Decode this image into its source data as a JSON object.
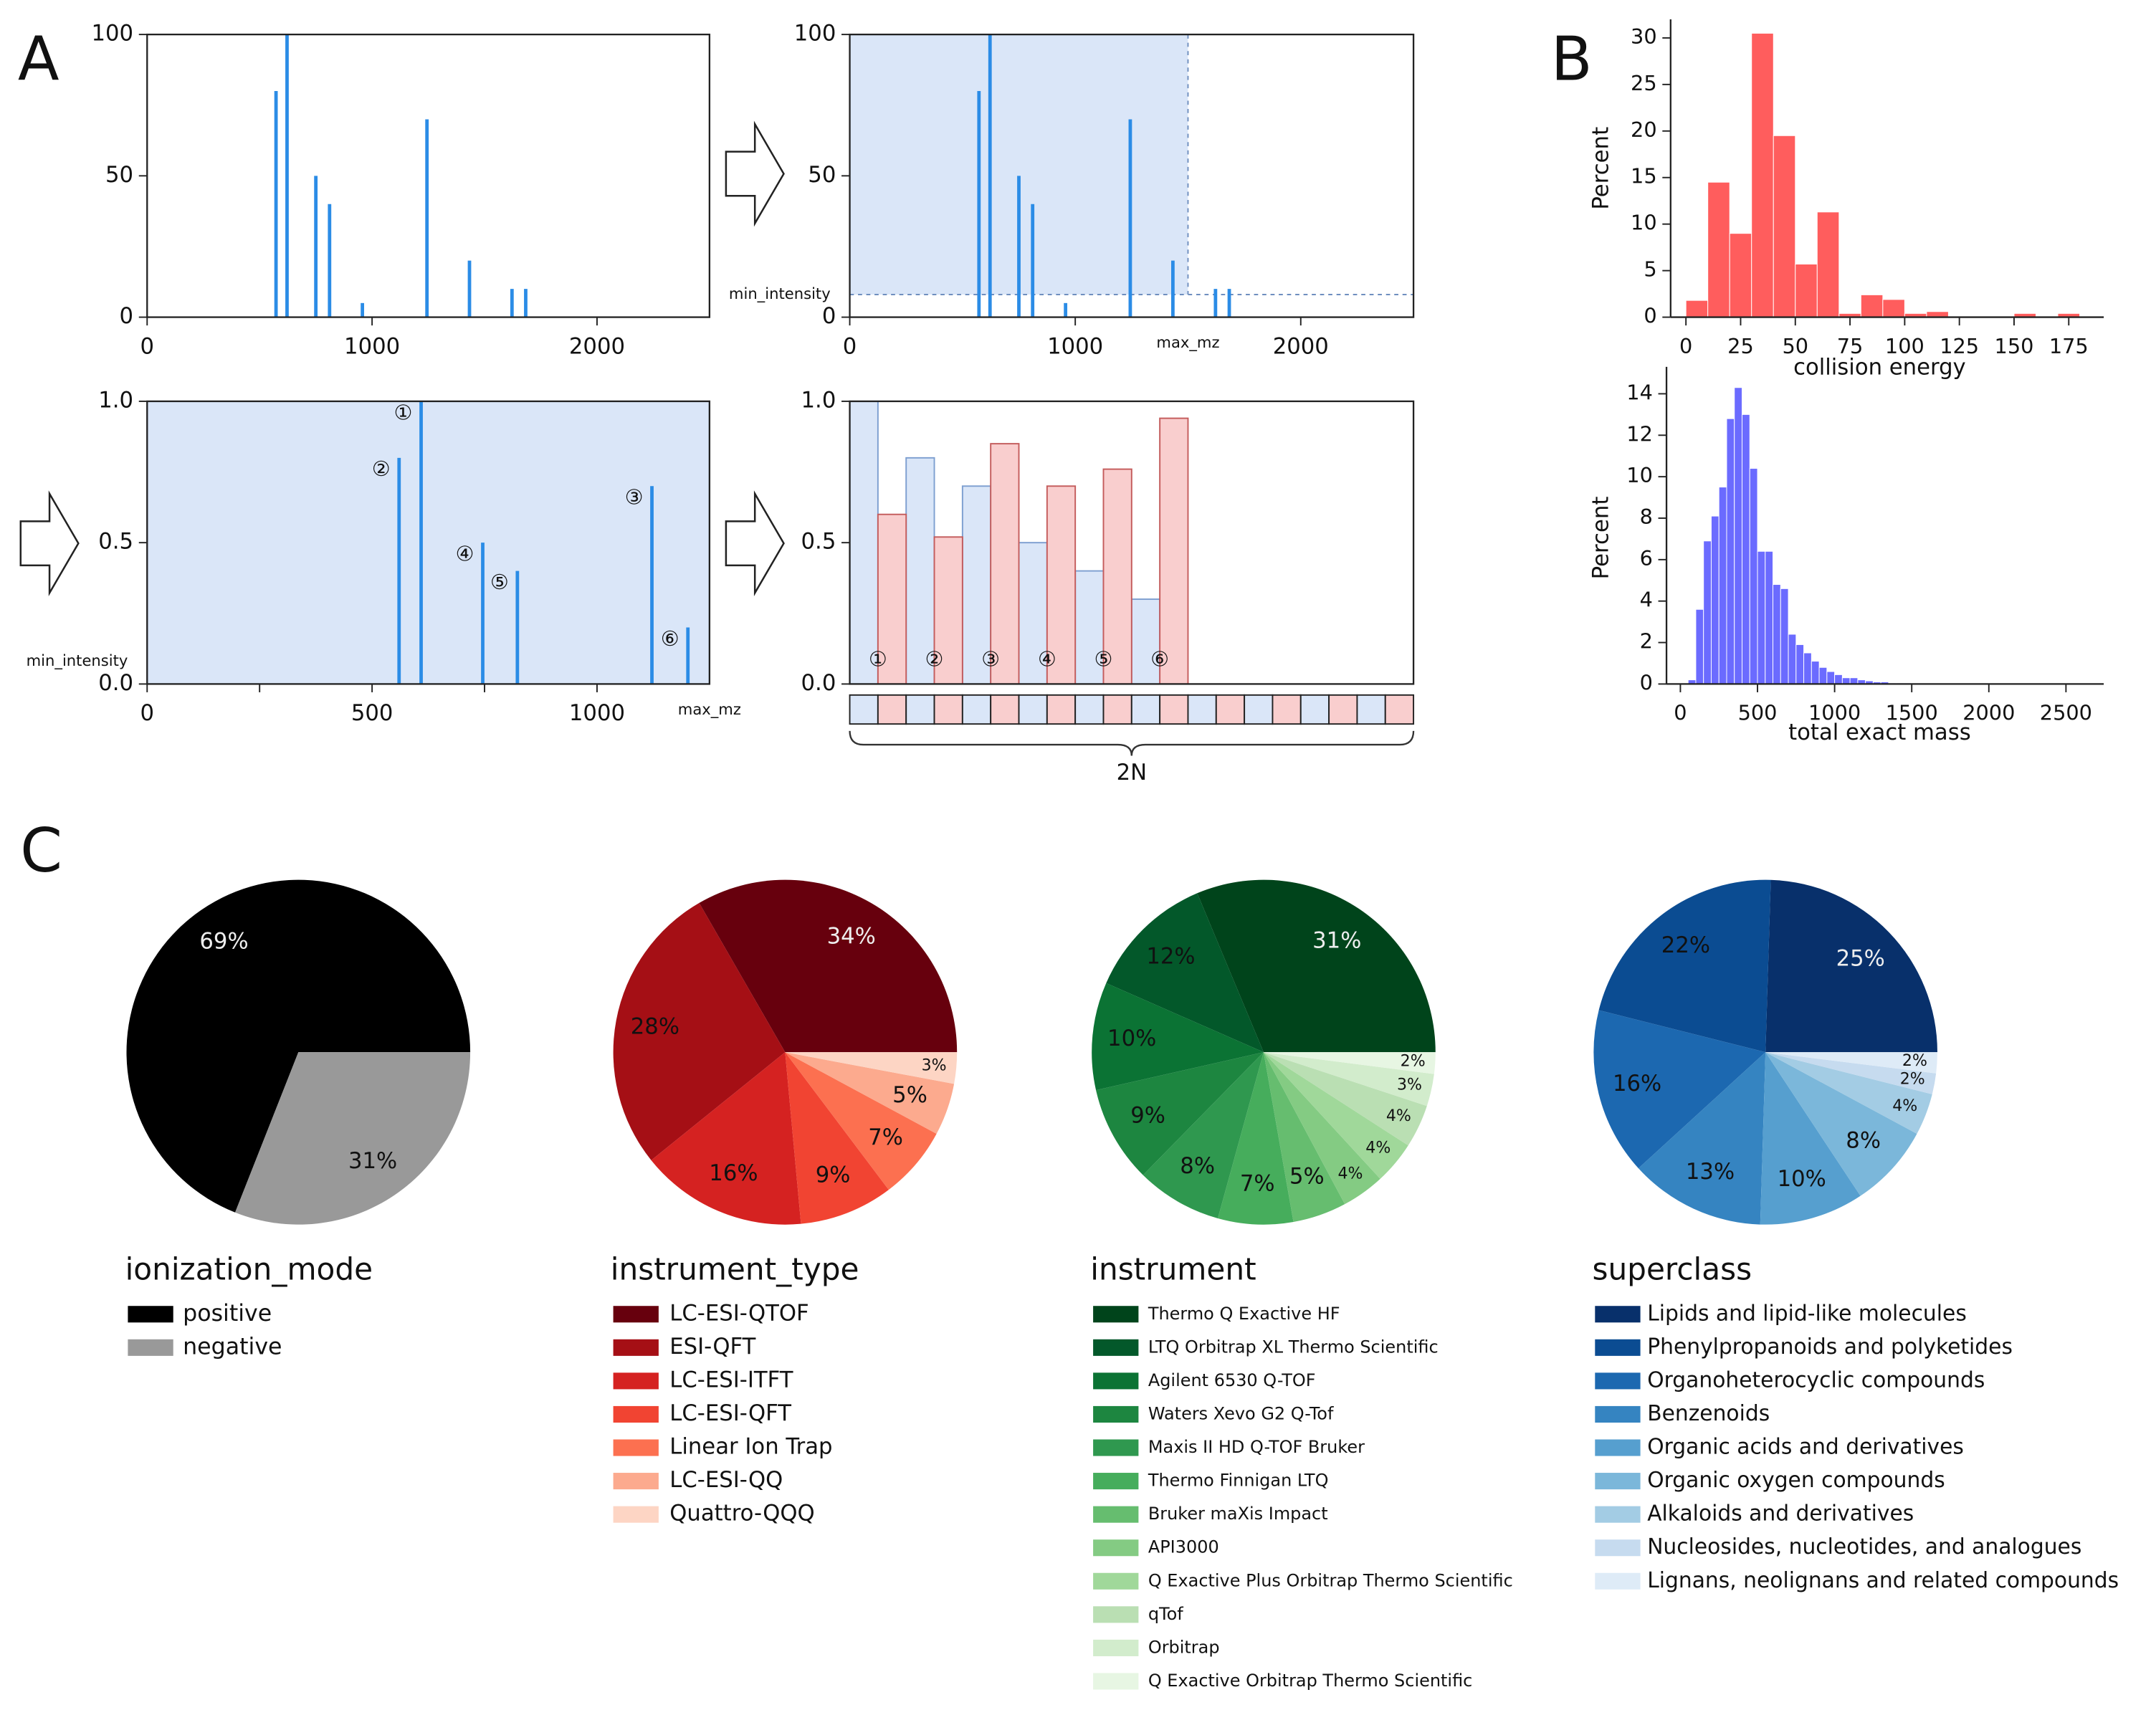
{
  "panel_labels": [
    "A",
    "B",
    "C"
  ],
  "chart_data": [
    {
      "type": "stem",
      "color": "#2b8ce6",
      "x": [
        573,
        622,
        750,
        811,
        957,
        1244,
        1433,
        1622,
        1683
      ],
      "values": [
        80,
        100,
        50,
        40,
        5,
        70,
        20,
        10,
        10
      ],
      "xlim": [
        0,
        2500
      ],
      "xticks": [
        0,
        1000,
        2000
      ],
      "ylim": [
        0,
        100
      ],
      "yticks": [
        0,
        50,
        100
      ]
    },
    {
      "type": "stem",
      "color": "#2b8ce6",
      "shade_color": "#dae6f8",
      "x": [
        573,
        622,
        750,
        811,
        957,
        1244,
        1433,
        1622,
        1683
      ],
      "values": [
        80,
        100,
        50,
        40,
        5,
        70,
        20,
        10,
        10
      ],
      "xlim": [
        0,
        2500
      ],
      "xticks": [
        0,
        1000,
        2000
      ],
      "ylim": [
        0,
        100
      ],
      "yticks": [
        0,
        50,
        100
      ],
      "max_mz": {
        "label": "max_mz",
        "value": 1500
      },
      "min_intensity": {
        "label": "min_intensity",
        "value": 8
      }
    },
    {
      "type": "stem",
      "color": "#2b8ce6",
      "shade_color": "#dae6f8",
      "x": [
        560,
        609,
        746,
        823,
        1122,
        1202
      ],
      "values": [
        0.8,
        1,
        0.5,
        0.4,
        0.7,
        0.2
      ],
      "peak_labels": [
        "②",
        "①",
        "④",
        "⑤",
        "③",
        "⑥"
      ],
      "xlim": [
        0,
        1250
      ],
      "xticks": [
        0,
        500,
        1000
      ],
      "xminor_ticks": [
        250,
        750
      ],
      "ylim": [
        0,
        1
      ],
      "yticks": [
        {
          "value": 0,
          "label": "0.0"
        },
        0.5,
        {
          "value": 1,
          "label": "1.0"
        }
      ],
      "max_mz": {
        "label": "max_mz",
        "value": 1250
      },
      "min_intensity": {
        "label": "min_intensity",
        "value": 0.08
      }
    },
    {
      "type": "bar",
      "categories": [
        "①",
        "②",
        "③",
        "④",
        "⑤",
        "⑥"
      ],
      "series": [
        {
          "color": "#dae6f8",
          "edge": "#7d9fd0",
          "values": [
            1,
            0.8,
            0.7,
            0.5,
            0.4,
            0.3
          ]
        },
        {
          "color": "#f9cece",
          "edge": "#c45c5c",
          "values": [
            0.6,
            0.52,
            0.85,
            0.7,
            0.76,
            0.94
          ]
        }
      ],
      "ylim": [
        0,
        1
      ],
      "yticks": [
        {
          "value": 0,
          "label": "0.0"
        },
        0.5,
        {
          "value": 1,
          "label": "1.0"
        }
      ],
      "vector_label": "2N"
    },
    {
      "type": "histogram",
      "color": "#ff5d5d",
      "xlabel": "collision energy",
      "ylabel": "Percent",
      "bins": [
        0,
        10,
        20,
        30,
        40,
        50,
        60,
        70,
        80,
        90,
        100,
        110,
        120,
        130,
        140,
        150,
        160,
        170,
        180
      ],
      "values": [
        1.8,
        14.5,
        9,
        30.5,
        19.5,
        5.7,
        11.3,
        0.4,
        2.4,
        1.9,
        0.4,
        0.6,
        0,
        0,
        0,
        0.4,
        0,
        0.4
      ],
      "xlim": [
        -7,
        191
      ],
      "xticks": [
        0,
        25,
        50,
        75,
        100,
        125,
        150,
        175
      ],
      "ylim": [
        0,
        32
      ],
      "yticks": [
        0,
        5,
        10,
        15,
        20,
        25,
        30
      ]
    },
    {
      "type": "histogram",
      "color": "#6b6bff",
      "xlabel": "total exact mass",
      "ylabel": "Percent",
      "bins": [
        0,
        50,
        100,
        150,
        200,
        250,
        300,
        350,
        400,
        450,
        500,
        550,
        600,
        650,
        700,
        750,
        800,
        850,
        900,
        950,
        1000,
        1050,
        1100,
        1150,
        1200,
        1250,
        1300,
        1350,
        1400,
        1450,
        1500,
        1550,
        1600
      ],
      "values": [
        0,
        0.2,
        3.6,
        6.9,
        8.1,
        9.5,
        12.8,
        14.3,
        13.0,
        10.4,
        6.4,
        6.4,
        4.8,
        4.6,
        2.4,
        1.9,
        1.5,
        1.1,
        0.8,
        0.6,
        0.45,
        0.3,
        0.3,
        0.2,
        0.15,
        0.1,
        0.1,
        0.05,
        0.05,
        0.05,
        0.03,
        0.02
      ],
      "xlim": [
        -90,
        2745
      ],
      "xticks": [
        0,
        500,
        1000,
        1500,
        2000,
        2500
      ],
      "ylim": [
        0,
        15.3
      ],
      "yticks": [
        0,
        2,
        4,
        6,
        8,
        10,
        12,
        14
      ]
    },
    {
      "type": "pie",
      "title": "ionization_mode",
      "categories": [
        "positive",
        "negative"
      ],
      "values": [
        69,
        31
      ],
      "value_labels": [
        "69%",
        "31%"
      ],
      "colors": [
        "#000000",
        "#999999"
      ]
    },
    {
      "type": "pie",
      "title": "instrument_type",
      "categories": [
        "LC-ESI-QTOF",
        "ESI-QFT",
        "LC-ESI-ITFT",
        "LC-ESI-QFT",
        "Linear Ion Trap",
        "LC-ESI-QQ",
        "Quattro-QQQ"
      ],
      "values": [
        34,
        28,
        16,
        9,
        7,
        5,
        3
      ],
      "value_labels": [
        "34%",
        "28%",
        "16%",
        "9%",
        "7%",
        "5%",
        "3%"
      ],
      "colors": [
        "#67000d",
        "#a50f15",
        "#d52221",
        "#f14432",
        "#fc7050",
        "#fcaa8e",
        "#fdd5c4"
      ]
    },
    {
      "type": "pie",
      "title": "instrument",
      "categories": [
        "Thermo Q Exactive HF",
        "LTQ Orbitrap XL Thermo Scientific",
        "Agilent 6530 Q-TOF",
        "Waters Xevo G2 Q-Tof",
        "Maxis II HD Q-TOF Bruker",
        "Thermo Finnigan LTQ",
        "Bruker maXis Impact",
        "API3000",
        "Q Exactive Plus Orbitrap Thermo Scientific",
        "qTof",
        "Orbitrap",
        "Q Exactive Orbitrap Thermo Scientific"
      ],
      "values": [
        31,
        12,
        10,
        9,
        8,
        7,
        5,
        4,
        4,
        4,
        3,
        2
      ],
      "value_labels": [
        "31%",
        "12%",
        "10%",
        "9%",
        "8%",
        "7%",
        "5%",
        "4%",
        "4%",
        "4%",
        "3%",
        "2%"
      ],
      "colors": [
        "#00441b",
        "#03582a",
        "#0b7334",
        "#1d8640",
        "#2f984f",
        "#46ad5c",
        "#66bd6f",
        "#84cb83",
        "#a0d89a",
        "#badfb3",
        "#d2eccc",
        "#e7f6e3"
      ]
    },
    {
      "type": "pie",
      "title": "superclass",
      "categories": [
        "Lipids and lipid-like molecules",
        "Phenylpropanoids and polyketides",
        "Organoheterocyclic compounds",
        "Benzenoids",
        "Organic acids and derivatives",
        "Organic oxygen compounds",
        "Alkaloids and derivatives",
        "Nucleosides, nucleotides, and analogues",
        "Lignans, neolignans and related compounds"
      ],
      "values": [
        25,
        22,
        16,
        13,
        10,
        8,
        4,
        2,
        2
      ],
      "value_labels": [
        "25%",
        "22%",
        "16%",
        "13%",
        "10%",
        "8%",
        "4%",
        "2%",
        "2%"
      ],
      "colors": [
        "#08306b",
        "#0b4c92",
        "#1c68b0",
        "#3584c1",
        "#569fcf",
        "#7bb7da",
        "#a3cce4",
        "#c6dbef",
        "#deebf7"
      ]
    }
  ]
}
